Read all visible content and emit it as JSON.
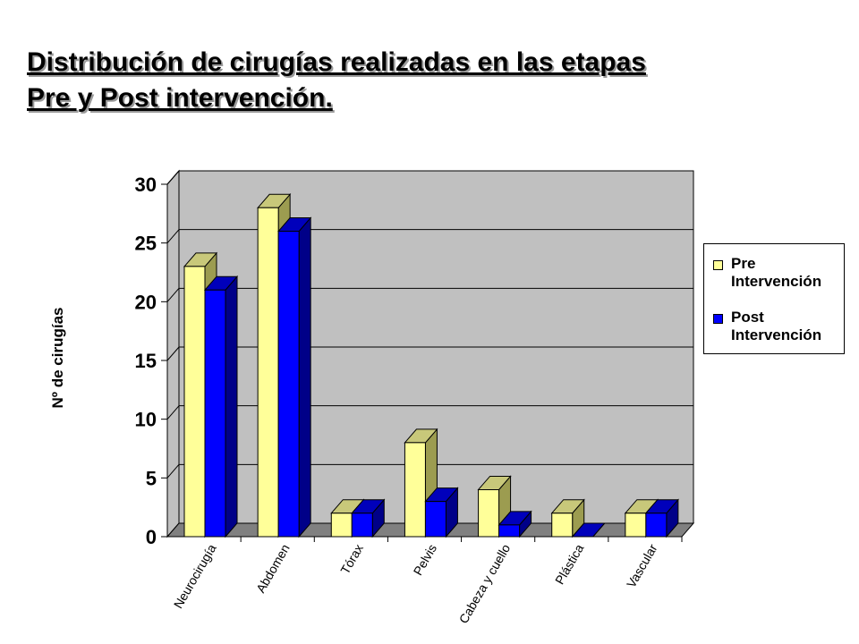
{
  "title_lines": [
    "Distribución de cirugías  realizadas en las etapas",
    "Pre y Post intervención."
  ],
  "colors": {
    "pre_front": "#ffff99",
    "pre_top": "#c8c87a",
    "pre_side": "#9c9c50",
    "post_front": "#0000ff",
    "post_top": "#0000bb",
    "post_side": "#000088",
    "wall": "#c0c0c0",
    "floor": "#808080"
  },
  "legend": {
    "items": [
      {
        "line1": "Pre",
        "line2": "Intervención"
      },
      {
        "line1": "Post",
        "line2": "Intervención"
      }
    ]
  },
  "chart_data": {
    "type": "bar",
    "three_d": true,
    "categories": [
      "Neurocirugía",
      "Abdomen",
      "Tórax",
      "Pelvis",
      "Cabeza y cuello",
      "Plástica",
      "Vascular"
    ],
    "series": [
      {
        "name": "Pre Intervención",
        "values": [
          23,
          28,
          2,
          8,
          4,
          2,
          2
        ]
      },
      {
        "name": "Post Intervención",
        "values": [
          21,
          26,
          2,
          3,
          1,
          0,
          2
        ]
      }
    ],
    "ylabel": "Nº de cirugías",
    "xlabel": "",
    "ylim": [
      0,
      30
    ],
    "yticks": [
      0,
      5,
      10,
      15,
      20,
      25,
      30
    ],
    "grid": true,
    "legend_position": "right"
  }
}
